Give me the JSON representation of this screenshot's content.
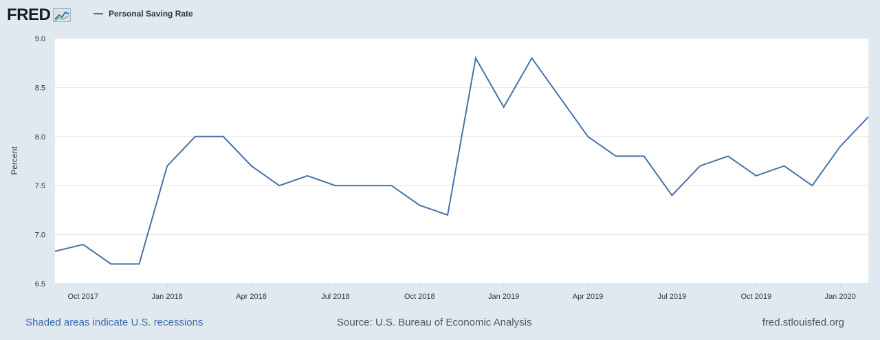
{
  "header": {
    "logo_text": "FRED",
    "logo_icon": "line-chart-icon"
  },
  "colors": {
    "background": "#e1e9f0",
    "plot_background": "#ffffff",
    "series": "#4572a7",
    "grid": "#e6e6e6",
    "link": "#3d6ca8"
  },
  "footer": {
    "recessions_note": "Shaded areas indicate U.S. recessions",
    "source": "Source: U.S. Bureau of Economic Analysis",
    "site": "fred.stlouisfed.org"
  },
  "chart_data": {
    "type": "line",
    "title": "",
    "xlabel": "",
    "ylabel": "Percent",
    "ylim": [
      6.5,
      9.0
    ],
    "yticks": [
      "6.5",
      "7.0",
      "7.5",
      "8.0",
      "8.5",
      "9.0"
    ],
    "xticks": [
      "Oct 2017",
      "Jan 2018",
      "Apr 2018",
      "Jul 2018",
      "Oct 2018",
      "Jan 2019",
      "Apr 2019",
      "Jul 2019",
      "Oct 2019",
      "Jan 2020"
    ],
    "grid": true,
    "legend_position": "top-left",
    "x": [
      "2017-09",
      "2017-10",
      "2017-11",
      "2017-12",
      "2018-01",
      "2018-02",
      "2018-03",
      "2018-04",
      "2018-05",
      "2018-06",
      "2018-07",
      "2018-08",
      "2018-09",
      "2018-10",
      "2018-11",
      "2018-12",
      "2019-01",
      "2019-02",
      "2019-03",
      "2019-04",
      "2019-05",
      "2019-06",
      "2019-07",
      "2019-08",
      "2019-09",
      "2019-10",
      "2019-11",
      "2019-12",
      "2020-01",
      "2020-02"
    ],
    "series": [
      {
        "name": "Personal Saving Rate",
        "values": [
          6.83,
          6.9,
          6.7,
          6.7,
          7.7,
          8.0,
          8.0,
          7.7,
          7.5,
          7.6,
          7.5,
          7.5,
          7.5,
          7.3,
          7.2,
          8.8,
          8.3,
          8.8,
          8.4,
          8.0,
          7.8,
          7.8,
          7.4,
          7.7,
          7.8,
          7.6,
          7.7,
          7.5,
          7.9,
          8.2
        ]
      }
    ]
  }
}
